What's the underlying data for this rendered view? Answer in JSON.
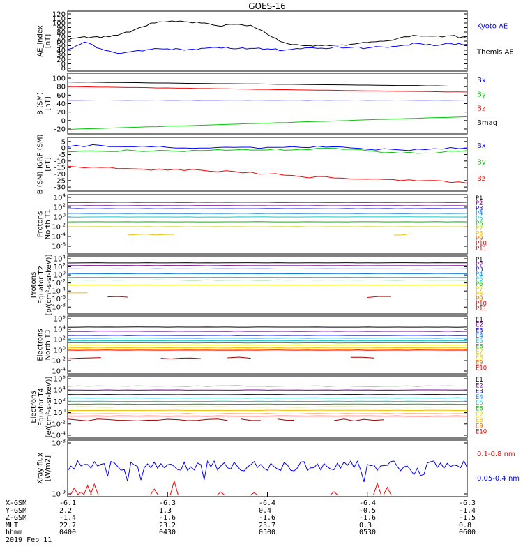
{
  "title": "GOES-16",
  "chart_data": [
    {
      "type": "line",
      "ylabel": [
        "AE_index",
        "[nT]"
      ],
      "ylim": [
        0,
        120
      ],
      "yticks": [
        "0",
        "10",
        "20",
        "30",
        "40",
        "50",
        "60",
        "70",
        "80",
        "90",
        "100",
        "110",
        "120"
      ],
      "grid": false,
      "legend": [
        {
          "name": "Kyoto AE",
          "color": "#0000ff"
        },
        {
          "name": "Themis AE",
          "color": "#000000"
        }
      ],
      "x": [
        0,
        5,
        10,
        15,
        20,
        25,
        30,
        35,
        40,
        45,
        50,
        55,
        60,
        65,
        70,
        75,
        80,
        85,
        90,
        95,
        100,
        105,
        110,
        115,
        120
      ],
      "series": [
        {
          "name": "Themis AE",
          "color": "#000000",
          "values": [
            62,
            70,
            68,
            73,
            85,
            100,
            103,
            103,
            100,
            94,
            97,
            95,
            75,
            57,
            51,
            51,
            51,
            53,
            57,
            60,
            68,
            72,
            71,
            72,
            66
          ]
        },
        {
          "name": "Kyoto AE",
          "color": "#0000ff",
          "values": [
            42,
            58,
            43,
            33,
            38,
            42,
            43,
            40,
            44,
            46,
            43,
            44,
            43,
            40,
            43,
            44,
            47,
            46,
            45,
            47,
            50,
            55,
            50,
            55,
            53
          ]
        }
      ]
    },
    {
      "type": "line",
      "ylabel": [
        "B (SM)",
        "[nT]"
      ],
      "ylim": [
        -25,
        105
      ],
      "yticks": [
        "100",
        "80",
        "60",
        "40",
        "20",
        "0",
        "-20"
      ],
      "grid": false,
      "legend": [
        {
          "name": "Bx",
          "color": "#0000ff"
        },
        {
          "name": "By",
          "color": "#00cc00"
        },
        {
          "name": "Bz",
          "color": "#ff0000"
        },
        {
          "name": "Bmag",
          "color": "#000000"
        }
      ],
      "series": [
        {
          "name": "Bmag",
          "color": "#000000",
          "from": 91,
          "to": 81
        },
        {
          "name": "Bz",
          "color": "#ff0000",
          "from": 80,
          "to": 67
        },
        {
          "name": "Bx",
          "color": "#0000ff",
          "from": 48,
          "to": 48
        },
        {
          "name": "By",
          "color": "#00cc00",
          "from": -21,
          "to": 9
        }
      ]
    },
    {
      "type": "line",
      "ylabel": [
        "B (SM)-IGRF (SM)",
        "[nT]"
      ],
      "ylim": [
        -31,
        6
      ],
      "yticks": [
        "5",
        "0",
        "-5",
        "-10",
        "-15",
        "-20",
        "-25",
        "-30"
      ],
      "grid": false,
      "legend": [
        {
          "name": "Bx",
          "color": "#0000ff"
        },
        {
          "name": "By",
          "color": "#00cc00"
        },
        {
          "name": "Bz",
          "color": "#ff0000"
        }
      ],
      "x": [
        0,
        10,
        20,
        30,
        40,
        50,
        60,
        70,
        80,
        90,
        100,
        110,
        120
      ],
      "series": [
        {
          "name": "Bx",
          "color": "#0000ff",
          "values": [
            1,
            2,
            1,
            0.5,
            0,
            0.5,
            0.5,
            0.5,
            1,
            -1,
            -1.5,
            -0.5,
            0
          ]
        },
        {
          "name": "By",
          "color": "#00cc00",
          "values": [
            -3,
            -2.5,
            -2,
            -2,
            -2,
            -1.5,
            -1.5,
            -1,
            0,
            -2,
            -4,
            -4,
            -2
          ]
        },
        {
          "name": "Bz",
          "color": "#ff0000",
          "values": [
            -14,
            -15,
            -16,
            -17,
            -17,
            -18,
            -20,
            -22,
            -23,
            -24,
            -25,
            -25,
            -27
          ]
        }
      ]
    },
    {
      "type": "line",
      "ylabel": [
        "Protons",
        "North T1"
      ],
      "yscale": "log",
      "ylim": [
        -7,
        4
      ],
      "yticks": [
        "10^4",
        "10^2",
        "10^0",
        "10^-2",
        "10^-4",
        "10^-6"
      ],
      "grid": false,
      "legend": [
        {
          "name": "P1",
          "color": "#000000"
        },
        {
          "name": "P2",
          "color": "#7a0093"
        },
        {
          "name": "P3",
          "color": "#0000ee"
        },
        {
          "name": "P4",
          "color": "#0a7ae0"
        },
        {
          "name": "P5",
          "color": "#19c8c8"
        },
        {
          "name": "P6",
          "color": "#18b018"
        },
        {
          "name": "P7",
          "color": "#cfd200"
        },
        {
          "name": "P8",
          "color": "#f0c000"
        },
        {
          "name": "P9",
          "color": "#f07000"
        },
        {
          "name": "P10",
          "color": "#e00000"
        },
        {
          "name": "P11",
          "color": "#b00000"
        }
      ],
      "series": [
        {
          "name": "P1",
          "color": "#000000",
          "level": 3.0
        },
        {
          "name": "P2",
          "color": "#7a0093",
          "level": 2.3
        },
        {
          "name": "P3",
          "color": "#0000ee",
          "level": 1.7
        },
        {
          "name": "P4",
          "color": "#0a7ae0",
          "level": 0.7
        },
        {
          "name": "P5",
          "color": "#19c8c8",
          "level": 0.0
        },
        {
          "name": "P6",
          "color": "#18b018",
          "level": -1.0
        },
        {
          "name": "P7",
          "color": "#cfd200",
          "level": -2.0
        },
        {
          "name": "P8",
          "color": "#f0c000",
          "level": -3.6,
          "segments": [
            [
              18,
              32
            ],
            [
              98,
              103
            ]
          ]
        }
      ]
    },
    {
      "type": "line",
      "ylabel": [
        "Protons",
        "Equator T2",
        "[p/(cm²-s-sr-keV)]"
      ],
      "yscale": "log",
      "ylim": [
        -9,
        4
      ],
      "yticks": [
        "10^4",
        "10^2",
        "10^0",
        "10^-2",
        "10^-4",
        "10^-6",
        "10^-8"
      ],
      "grid": false,
      "legend": [
        {
          "name": "P1",
          "color": "#000000"
        },
        {
          "name": "P2",
          "color": "#7a0093"
        },
        {
          "name": "P3",
          "color": "#0000ee"
        },
        {
          "name": "P4",
          "color": "#0a7ae0"
        },
        {
          "name": "P5",
          "color": "#19c8c8"
        },
        {
          "name": "P6",
          "color": "#18b018"
        },
        {
          "name": "P7",
          "color": "#cfd200"
        },
        {
          "name": "P8",
          "color": "#f0c000"
        },
        {
          "name": "P9",
          "color": "#f07000"
        },
        {
          "name": "P10",
          "color": "#e00000"
        },
        {
          "name": "P11",
          "color": "#b00000"
        }
      ],
      "series": [
        {
          "name": "P1",
          "color": "#000000",
          "level": 3.0
        },
        {
          "name": "P2",
          "color": "#7a0093",
          "level": 2.3
        },
        {
          "name": "P3",
          "color": "#0000ee",
          "level": 1.5
        },
        {
          "name": "P4",
          "color": "#0a7ae0",
          "level": 0.3
        },
        {
          "name": "P5",
          "color": "#19c8c8",
          "level": -0.6
        },
        {
          "name": "P6",
          "color": "#18b018",
          "level": -1.3
        },
        {
          "name": "P7",
          "color": "#cfd200",
          "level": -2.5
        },
        {
          "name": "P8",
          "color": "#f0c000",
          "level": -4.6,
          "segments": [
            [
              0,
              6
            ]
          ]
        },
        {
          "name": "P10",
          "color": "#e00000",
          "level": -5.5,
          "segments": [
            [
              12,
              18
            ],
            [
              90,
              97
            ]
          ]
        }
      ]
    },
    {
      "type": "line",
      "ylabel": [
        "Electrons",
        "North T3"
      ],
      "yscale": "log",
      "ylim": [
        -4,
        6
      ],
      "yticks": [
        "10^6",
        "10^4",
        "10^2",
        "10^0",
        "10^-2",
        "10^-4"
      ],
      "grid": false,
      "legend": [
        {
          "name": "E1",
          "color": "#000000"
        },
        {
          "name": "E2",
          "color": "#7a0093"
        },
        {
          "name": "E3",
          "color": "#0000ee"
        },
        {
          "name": "E4",
          "color": "#0a7ae0"
        },
        {
          "name": "E5",
          "color": "#19c8c8"
        },
        {
          "name": "E6",
          "color": "#18b018"
        },
        {
          "name": "E7",
          "color": "#cfd200"
        },
        {
          "name": "E8",
          "color": "#f0c000"
        },
        {
          "name": "E9",
          "color": "#f07000"
        },
        {
          "name": "E10",
          "color": "#e00000"
        }
      ],
      "series": [
        {
          "name": "E1",
          "color": "#000000",
          "level": 4.4
        },
        {
          "name": "E2",
          "color": "#7a0093",
          "level": 3.6
        },
        {
          "name": "E3",
          "color": "#0000ee",
          "level": 2.8
        },
        {
          "name": "E4",
          "color": "#0a7ae0",
          "level": 2.3
        },
        {
          "name": "E5",
          "color": "#19c8c8",
          "level": 1.8
        },
        {
          "name": "E6",
          "color": "#18b018",
          "level": 1.4
        },
        {
          "name": "E7",
          "color": "#cfd200",
          "level": 1.0
        },
        {
          "name": "E8",
          "color": "#f0c000",
          "level": 0.5
        },
        {
          "name": "E9",
          "color": "#f07000",
          "level": 0.2
        },
        {
          "name": "E10",
          "color": "#e00000",
          "level": 0.0
        },
        {
          "name": "E10-low",
          "color": "#aa0000",
          "level": -1.5,
          "segments": [
            [
              0,
              10
            ],
            [
              28,
              40
            ],
            [
              48,
              55
            ],
            [
              85,
              92
            ]
          ]
        }
      ]
    },
    {
      "type": "line",
      "ylabel": [
        "Electrons",
        "Equator T4",
        "[e/(cm²-s-sr-keV)]"
      ],
      "yscale": "log",
      "ylim": [
        -4,
        6
      ],
      "yticks": [
        "10^6",
        "10^4",
        "10^2",
        "10^0",
        "10^-2",
        "10^-4"
      ],
      "grid": false,
      "legend": [
        {
          "name": "E1",
          "color": "#000000"
        },
        {
          "name": "E2",
          "color": "#7a0093"
        },
        {
          "name": "E3",
          "color": "#0000ee"
        },
        {
          "name": "E4",
          "color": "#0a7ae0"
        },
        {
          "name": "E5",
          "color": "#19c8c8"
        },
        {
          "name": "E6",
          "color": "#18b018"
        },
        {
          "name": "E7",
          "color": "#cfd200"
        },
        {
          "name": "E8",
          "color": "#f0c000"
        },
        {
          "name": "E9",
          "color": "#f07000"
        },
        {
          "name": "E10",
          "color": "#e00000"
        }
      ],
      "series": [
        {
          "name": "E1",
          "color": "#000000",
          "level": 4.7
        },
        {
          "name": "E2",
          "color": "#7a0093",
          "level": 4.0
        },
        {
          "name": "E3",
          "color": "#0000ee",
          "level": 3.2
        },
        {
          "name": "E4",
          "color": "#0a7ae0",
          "level": 2.6
        },
        {
          "name": "E5",
          "color": "#19c8c8",
          "level": 2.0
        },
        {
          "name": "E6",
          "color": "#18b018",
          "level": 1.5
        },
        {
          "name": "E7",
          "color": "#cfd200",
          "level": 1.0
        },
        {
          "name": "E8",
          "color": "#f0c000",
          "level": 0.4
        },
        {
          "name": "E9",
          "color": "#f07000",
          "level": -0.2
        },
        {
          "name": "E10",
          "color": "#e00000",
          "level": -0.6
        },
        {
          "name": "E10-low",
          "color": "#aa0000",
          "level": -1.3,
          "segments": [
            [
              0,
              48
            ],
            [
              52,
              58
            ],
            [
              63,
              68
            ],
            [
              80,
              95
            ]
          ]
        }
      ]
    },
    {
      "type": "line",
      "ylabel": [
        "Xray flux",
        "[W/m2]"
      ],
      "yscale": "log",
      "ylim": [
        -9,
        -8
      ],
      "yticks": [
        "10^-8",
        "10^-9"
      ],
      "grid": false,
      "legend": [
        {
          "name": "0.1-0.8 nm",
          "color": "#ff0000"
        },
        {
          "name": "0.05-0.4 nm",
          "color": "#0000ff"
        }
      ],
      "series": [
        {
          "name": "0.05-0.4 nm",
          "color": "#0000ff",
          "style": "noisy",
          "band": [
            -8.55,
            -8.35
          ]
        },
        {
          "name": "0.1-0.8 nm",
          "color": "#ff0000",
          "style": "spikes",
          "band": [
            -9.0,
            -8.7
          ],
          "spikes_at": [
            2,
            4,
            6,
            8,
            26,
            32,
            46,
            56,
            80,
            93,
            96
          ]
        }
      ]
    }
  ],
  "time_axis": {
    "ticks": [
      "0400",
      "0430",
      "0500",
      "0530",
      "0600"
    ],
    "rows": [
      {
        "label": "X-GSM",
        "values": [
          "-6.1",
          "-6.3",
          "-6.4",
          "-6.4",
          "-6.3"
        ]
      },
      {
        "label": "Y-GSM",
        "values": [
          "2.2",
          "1.3",
          "0.4",
          "-0.5",
          "-1.4"
        ]
      },
      {
        "label": "Z-GSM",
        "values": [
          "-1.4",
          "-1.6",
          "-1.6",
          "-1.6",
          "-1.5"
        ]
      },
      {
        "label": "MLT",
        "values": [
          "22.7",
          "23.2",
          "23.7",
          "0.3",
          "0.8"
        ]
      },
      {
        "label": "hhmm",
        "values": [
          "0400",
          "0430",
          "0500",
          "0530",
          "0600"
        ]
      }
    ],
    "date": "2019 Feb 11"
  }
}
